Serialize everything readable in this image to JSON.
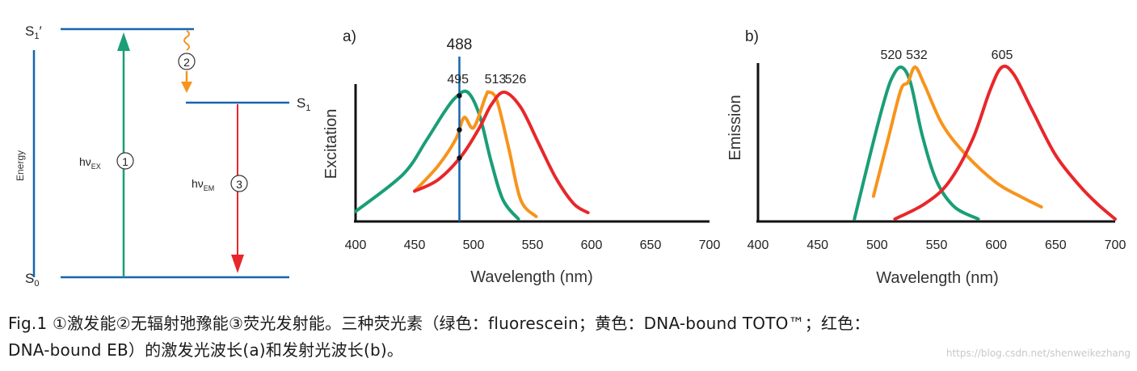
{
  "jablonski": {
    "s1prime_label": "S1'",
    "s1_label": "S1",
    "s0_label": "S0",
    "energy_label": "Energy",
    "hv_ex": "hν",
    "hv_ex_sub": "EX",
    "hv_em": "hν",
    "hv_em_sub": "EM",
    "step1": "①",
    "step2": "②",
    "step3": "③"
  },
  "chart_a": {
    "panel_label": "a)",
    "ylabel": "Excitation",
    "xlabel": "Wavelength (nm)",
    "laser_line_label": "488",
    "peak_labels": [
      "495",
      "513",
      "526"
    ],
    "x_ticks": [
      "400",
      "450",
      "500",
      "550",
      "600",
      "650",
      "700"
    ]
  },
  "chart_b": {
    "panel_label": "b)",
    "ylabel": "Emission",
    "xlabel": "Wavelength (nm)",
    "peak_labels": [
      "520",
      "532",
      "605"
    ],
    "x_ticks": [
      "400",
      "450",
      "500",
      "550",
      "600",
      "650",
      "700"
    ]
  },
  "chart_data": [
    {
      "type": "line",
      "xlabel": "Wavelength (nm)",
      "ylabel": "Excitation",
      "xlim": [
        400,
        700
      ],
      "vline": 488,
      "series": [
        {
          "color": "#1a9e77",
          "x": [
            400,
            440,
            460,
            475,
            485,
            495,
            505,
            515,
            525,
            538
          ],
          "y": [
            0.06,
            0.35,
            0.62,
            0.84,
            0.96,
            1.0,
            0.82,
            0.45,
            0.15,
            0.0
          ]
        },
        {
          "color": "#f7941d",
          "x": [
            450,
            470,
            485,
            492,
            500,
            510,
            513,
            520,
            530,
            540,
            553
          ],
          "y": [
            0.22,
            0.42,
            0.63,
            0.8,
            0.72,
            0.96,
            1.0,
            0.93,
            0.55,
            0.15,
            0.02
          ]
        },
        {
          "color": "#e8272a",
          "x": [
            450,
            470,
            490,
            505,
            515,
            526,
            540,
            555,
            570,
            585,
            597
          ],
          "y": [
            0.22,
            0.31,
            0.5,
            0.72,
            0.9,
            1.0,
            0.88,
            0.6,
            0.32,
            0.12,
            0.05
          ]
        }
      ],
      "peak_annotations": [
        495,
        513,
        526
      ]
    },
    {
      "type": "line",
      "xlabel": "Wavelength (nm)",
      "ylabel": "Emission",
      "xlim": [
        400,
        700
      ],
      "series": [
        {
          "color": "#1a9e77",
          "x": [
            481,
            495,
            505,
            512,
            520,
            528,
            538,
            550,
            565,
            585
          ],
          "y": [
            0.0,
            0.45,
            0.75,
            0.92,
            1.0,
            0.9,
            0.55,
            0.25,
            0.08,
            0.0
          ]
        },
        {
          "color": "#f7941d",
          "x": [
            497,
            510,
            520,
            526,
            532,
            540,
            555,
            575,
            600,
            620,
            638
          ],
          "y": [
            0.15,
            0.55,
            0.85,
            0.9,
            1.0,
            0.88,
            0.62,
            0.42,
            0.24,
            0.15,
            0.08
          ]
        },
        {
          "color": "#e8272a",
          "x": [
            515,
            540,
            560,
            580,
            595,
            605,
            615,
            630,
            650,
            670,
            685,
            700
          ],
          "y": [
            0.0,
            0.1,
            0.24,
            0.52,
            0.85,
            1.0,
            0.95,
            0.72,
            0.42,
            0.22,
            0.1,
            0.0
          ]
        }
      ],
      "peak_annotations": [
        520,
        532,
        605
      ]
    }
  ],
  "caption": {
    "line1": "Fig.1  ①激发能②无辐射弛豫能③荧光发射能。三种荧光素（绿色：fluorescein；黄色：DNA-bound TOTO™；红色：",
    "line2": "DNA-bound  EB）的激发光波长(a)和发射光波长(b)。"
  },
  "watermark": "https://blog.csdn.net/shenweikezhang",
  "colors": {
    "green": "#1a9e77",
    "orange": "#f7941d",
    "red": "#e8272a",
    "blue": "#1565b0",
    "axis": "#111111"
  }
}
